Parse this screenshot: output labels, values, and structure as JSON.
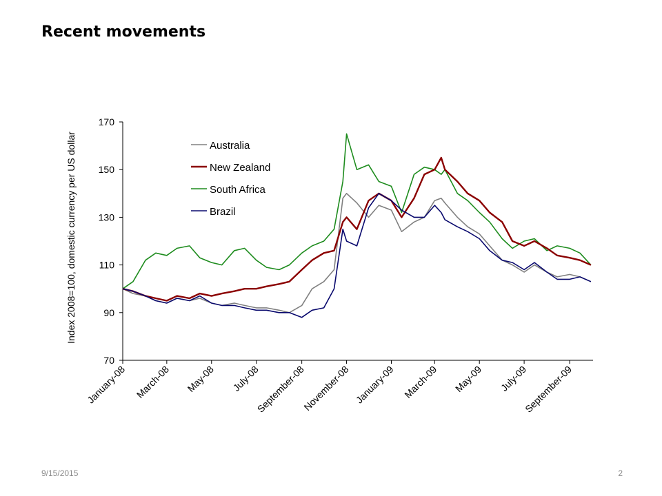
{
  "slide": {
    "title": "Recent movements",
    "footer_date": "9/15/2015",
    "page_number": "2"
  },
  "chart_data": {
    "type": "line",
    "title": "",
    "ylabel": "Index 2008=100, domestic currency per US dollar",
    "xlabel": "",
    "ylim": [
      70,
      170
    ],
    "y_ticks": [
      70,
      90,
      110,
      130,
      150,
      170
    ],
    "x_tick_labels": [
      "January-08",
      "March-08",
      "May-08",
      "July-08",
      "September-08",
      "November-08",
      "January-09",
      "March-09",
      "May-09",
      "July-09",
      "September-09"
    ],
    "x_range_months": [
      "2008-01",
      "2009-10"
    ],
    "grid": false,
    "legend_position": "top-left",
    "x": [
      "2008-01-01",
      "2008-01-15",
      "2008-02-01",
      "2008-02-15",
      "2008-03-01",
      "2008-03-15",
      "2008-04-01",
      "2008-04-15",
      "2008-05-01",
      "2008-05-15",
      "2008-06-01",
      "2008-06-15",
      "2008-07-01",
      "2008-07-15",
      "2008-08-01",
      "2008-08-15",
      "2008-09-01",
      "2008-09-15",
      "2008-10-01",
      "2008-10-15",
      "2008-10-27",
      "2008-11-01",
      "2008-11-15",
      "2008-12-01",
      "2008-12-15",
      "2009-01-01",
      "2009-01-15",
      "2009-02-01",
      "2009-02-15",
      "2009-03-01",
      "2009-03-10",
      "2009-03-15",
      "2009-04-01",
      "2009-04-15",
      "2009-05-01",
      "2009-05-15",
      "2009-06-01",
      "2009-06-15",
      "2009-07-01",
      "2009-07-15",
      "2009-08-01",
      "2009-08-15",
      "2009-09-01",
      "2009-09-15",
      "2009-09-30"
    ],
    "series": [
      {
        "name": "Australia",
        "color": "#808080",
        "values": [
          100,
          98,
          97,
          95,
          94,
          96,
          95,
          96,
          94,
          93,
          94,
          93,
          92,
          92,
          91,
          90,
          93,
          100,
          103,
          108,
          138,
          140,
          136,
          130,
          135,
          133,
          124,
          128,
          130,
          137,
          138,
          136,
          130,
          126,
          123,
          118,
          112,
          110,
          107,
          110,
          107,
          105,
          106,
          105,
          103
        ]
      },
      {
        "name": "New Zealand",
        "color": "#8b0000",
        "values": [
          100,
          99,
          97,
          96,
          95,
          97,
          96,
          98,
          97,
          98,
          99,
          100,
          100,
          101,
          102,
          103,
          108,
          112,
          115,
          116,
          128,
          130,
          125,
          137,
          140,
          137,
          130,
          138,
          148,
          150,
          155,
          150,
          145,
          140,
          137,
          132,
          128,
          120,
          118,
          120,
          117,
          114,
          113,
          112,
          110
        ]
      },
      {
        "name": "South Africa",
        "color": "#1e8c1e",
        "values": [
          100,
          103,
          112,
          115,
          114,
          117,
          118,
          113,
          111,
          110,
          116,
          117,
          112,
          109,
          108,
          110,
          115,
          118,
          120,
          125,
          145,
          165,
          150,
          152,
          145,
          143,
          132,
          148,
          151,
          150,
          148,
          150,
          140,
          137,
          132,
          128,
          121,
          117,
          120,
          121,
          116,
          118,
          117,
          115,
          110
        ]
      },
      {
        "name": "Brazil",
        "color": "#0a0a6e",
        "values": [
          100,
          99,
          97,
          95,
          94,
          96,
          95,
          97,
          94,
          93,
          93,
          92,
          91,
          91,
          90,
          90,
          88,
          91,
          92,
          100,
          125,
          120,
          118,
          134,
          140,
          137,
          133,
          130,
          130,
          135,
          132,
          129,
          126,
          124,
          121,
          116,
          112,
          111,
          108,
          111,
          107,
          104,
          104,
          105,
          103
        ]
      }
    ]
  }
}
